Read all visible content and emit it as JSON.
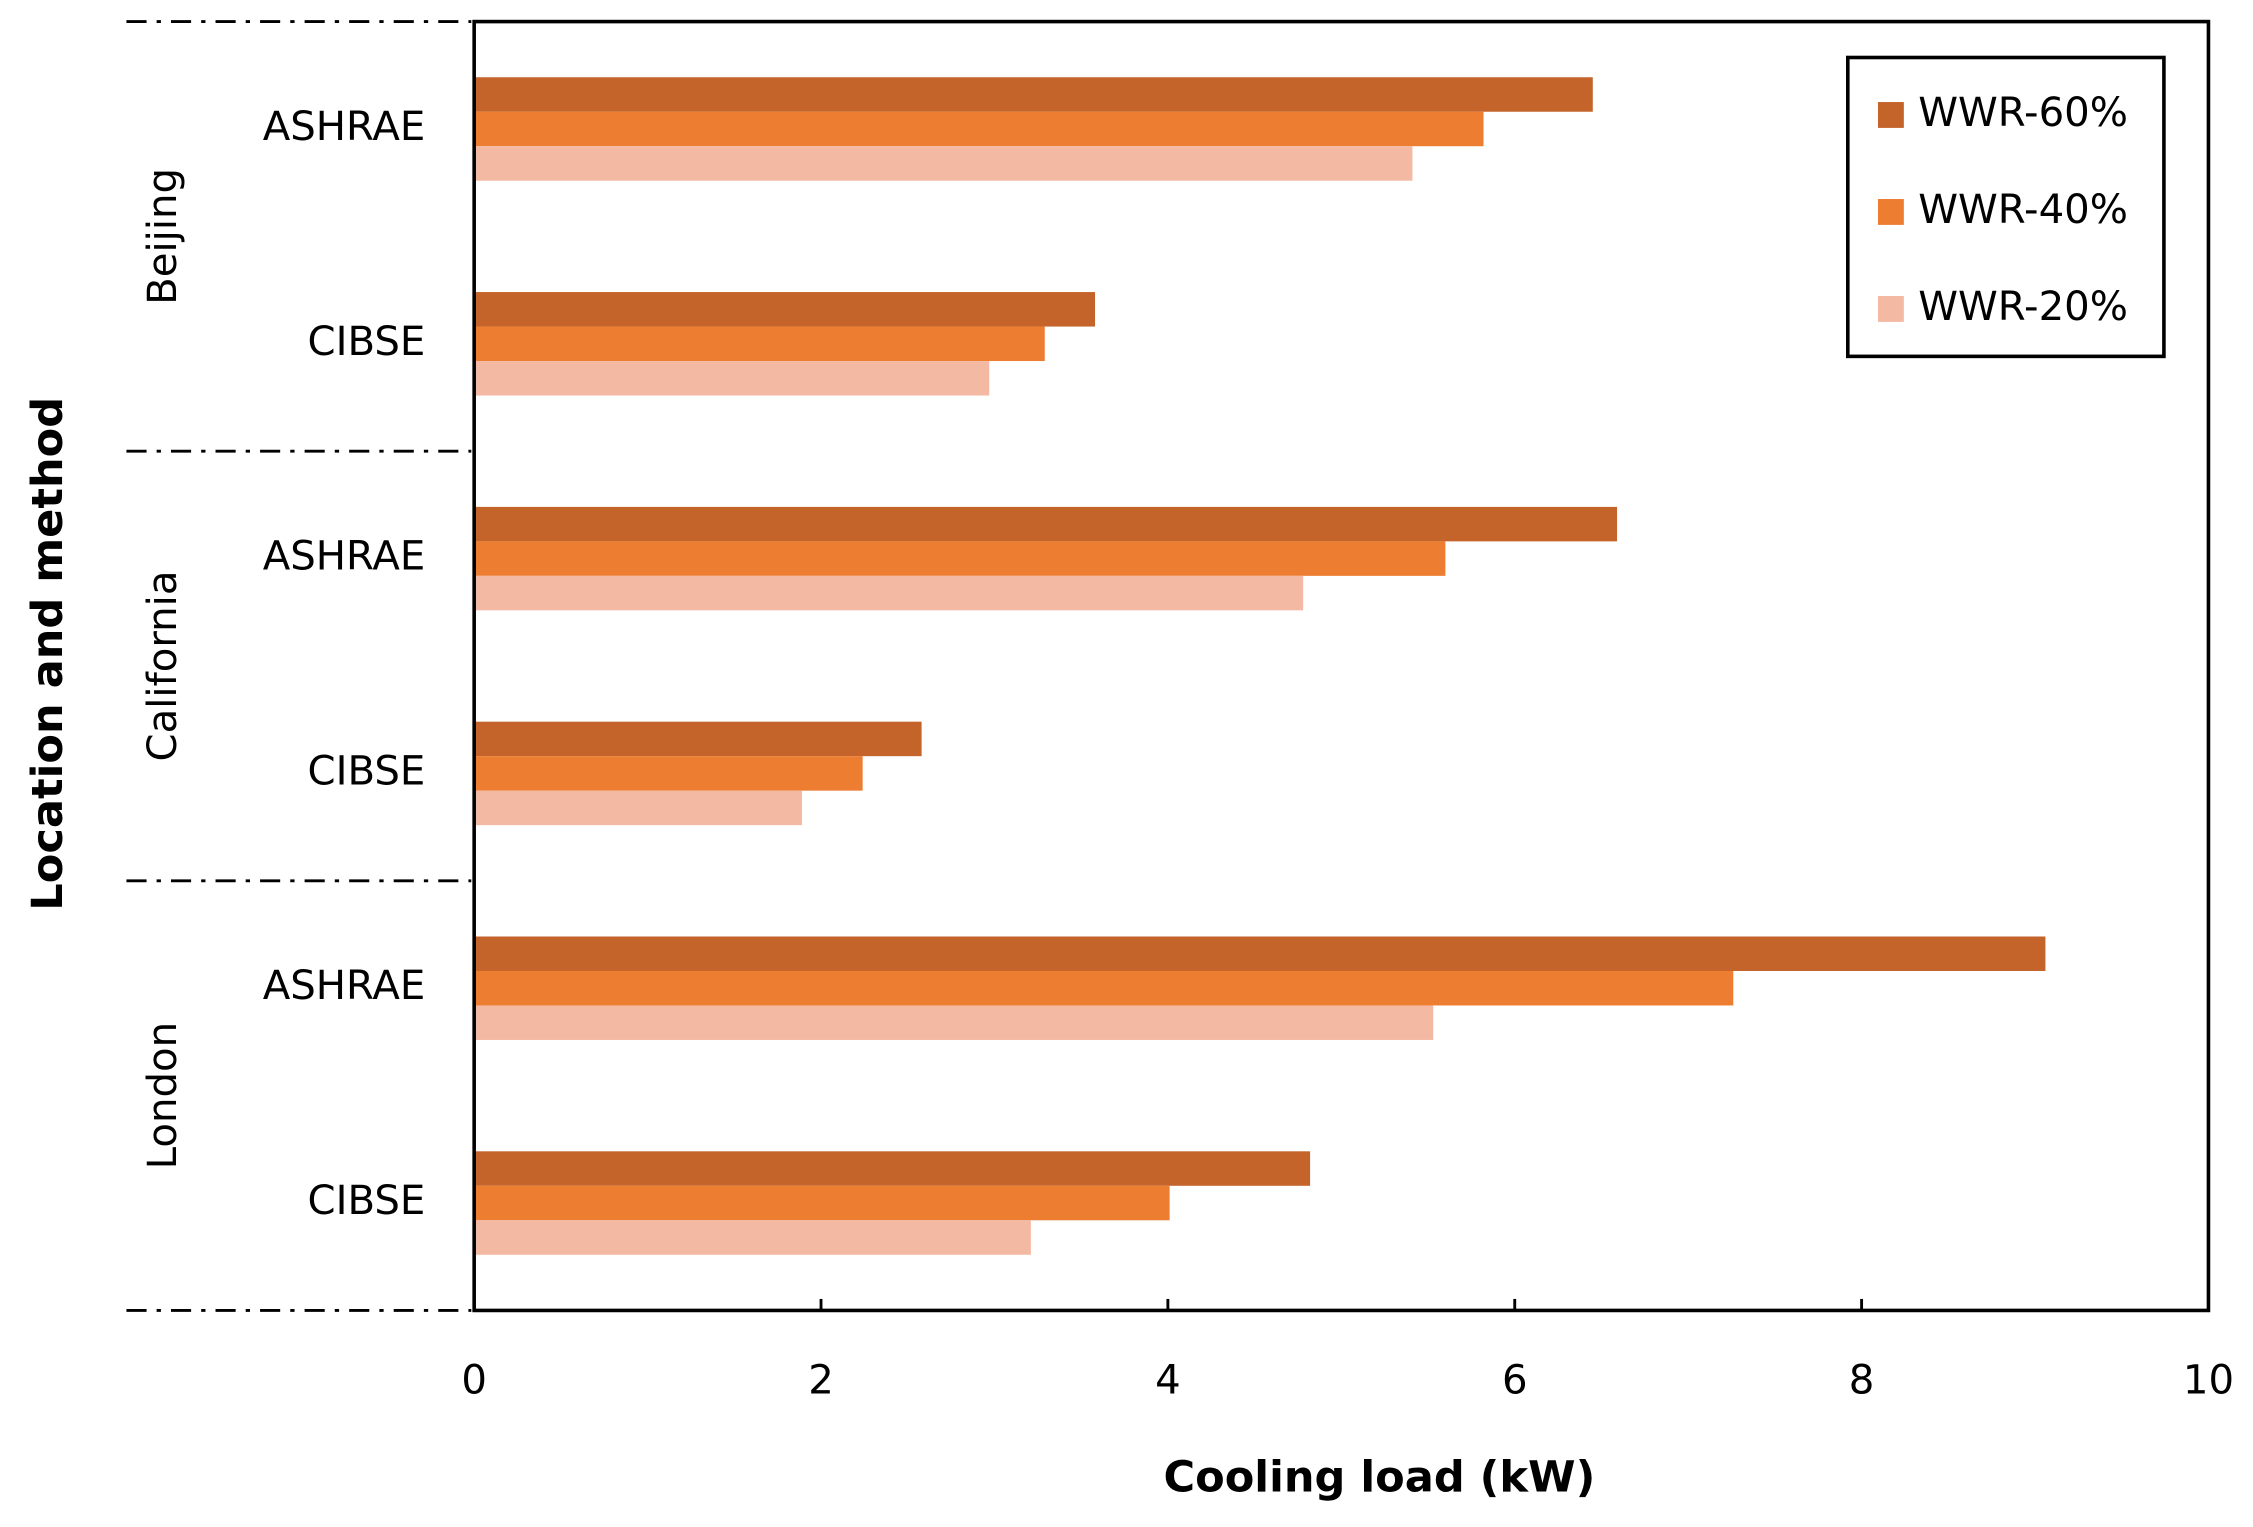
{
  "chart_data": {
    "type": "barh",
    "x_label": "Cooling load (kW)",
    "y_label": "Location and method",
    "groups": [
      {
        "name": "Beijing",
        "categories": [
          "ASHRAE",
          "CIBSE"
        ]
      },
      {
        "name": "California",
        "categories": [
          "ASHRAE",
          "CIBSE"
        ]
      },
      {
        "name": "London",
        "categories": [
          "ASHRAE",
          "CIBSE"
        ]
      }
    ],
    "series": [
      {
        "name": "WWR-60%",
        "color": "#c4632a",
        "values": [
          6.45,
          3.58,
          6.59,
          2.58,
          9.06,
          4.82
        ]
      },
      {
        "name": "WWR-40%",
        "color": "#ed7d31",
        "values": [
          5.82,
          3.29,
          5.6,
          2.24,
          7.26,
          4.01
        ]
      },
      {
        "name": "WWR-20%",
        "color": "#f4b9a3",
        "values": [
          5.41,
          2.97,
          4.78,
          1.89,
          5.53,
          3.21
        ]
      }
    ],
    "xlim": [
      0,
      10
    ],
    "xticks": [
      0,
      2,
      4,
      6,
      8,
      10
    ],
    "legend": "upper right"
  }
}
